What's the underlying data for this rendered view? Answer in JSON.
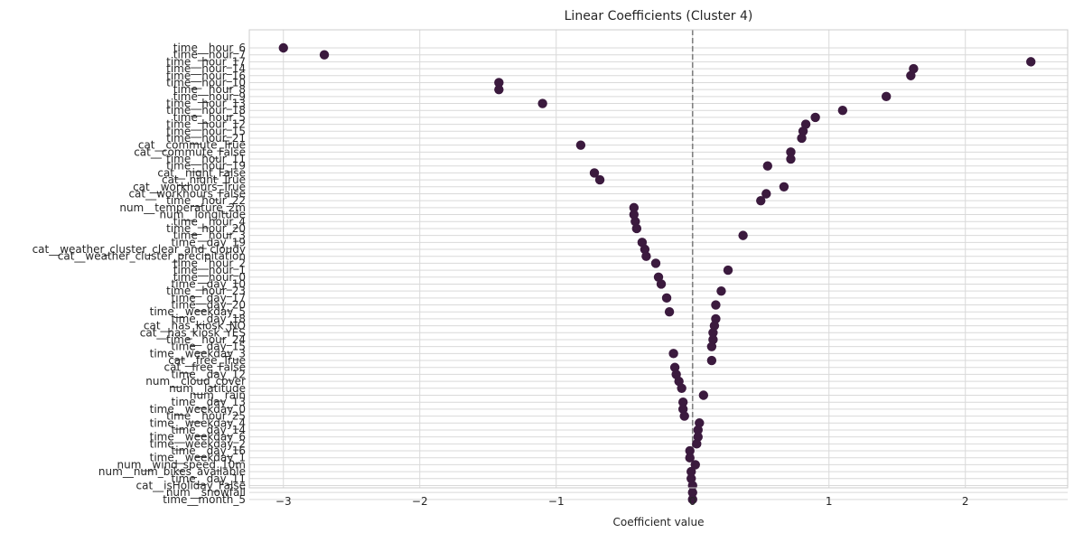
{
  "chart_data": {
    "type": "scatter",
    "title": "Linear Coefficients (Cluster 4)",
    "xlabel": "Coefficient value",
    "ylabel": "",
    "xlim": [
      -3.25,
      2.75
    ],
    "xticks": [
      -3,
      -2,
      -1,
      0,
      1,
      2
    ],
    "xtick_labels": [
      "−3",
      "−2",
      "−1",
      "0",
      "1",
      "2"
    ],
    "grid": true,
    "zero_line": {
      "x": 0,
      "style": "dashed",
      "color": "#808080"
    },
    "marker_color": "#3b1a3e",
    "labels": [
      "time__hour_6",
      "time__hour_7",
      "time__hour_17",
      "time__hour_14",
      "time__hour_16",
      "time__hour_10",
      "time__hour_8",
      "time__hour_9",
      "time__hour_13",
      "time__hour_18",
      "time__hour_5",
      "time__hour_12",
      "time__hour_15",
      "time__hour_21",
      "cat__commute_True",
      "cat__commute_False",
      "time__hour_11",
      "time__hour_19",
      "cat__night_False",
      "cat__night_True",
      "cat__workhours_True",
      "cat__workhours_False",
      "time__hour_22",
      "num__temperature_2m",
      "num__longitude",
      "time__hour_4",
      "time__hour_20",
      "time__hour_3",
      "time__day_19",
      "cat__weather_cluster_clear_and_cloudy",
      "cat__weather_cluster_precipitation",
      "time__hour_2",
      "time__hour_1",
      "time__hour_0",
      "time__day_10",
      "time__hour_23",
      "time__day_17",
      "time__day_20",
      "time__weekday_5",
      "time__day_18",
      "cat__has_kiosk_NO",
      "cat__has_kiosk_YES",
      "time__hour_24",
      "time__day_15",
      "time__weekday_3",
      "cat__free_True",
      "cat__free_False",
      "time__day_12",
      "num__cloud_cover",
      "num__latitude",
      "num__rain",
      "time__day_13",
      "time__weekday_0",
      "time__hour_25",
      "time__weekday_4",
      "time__day_14",
      "time__weekday_6",
      "time__weekday_2",
      "time__day_16",
      "time__weekday_1",
      "num__wind_speed_10m",
      "num__num_bikes_available",
      "time__day_11",
      "cat__isHoliday_False",
      "num__snowfall",
      "time__month_5"
    ],
    "values": [
      -3.0,
      -2.7,
      2.48,
      1.62,
      1.6,
      -1.42,
      -1.42,
      1.42,
      -1.1,
      1.1,
      0.9,
      0.83,
      0.81,
      0.8,
      -0.82,
      0.72,
      0.72,
      0.55,
      -0.72,
      -0.68,
      0.67,
      0.54,
      0.5,
      -0.43,
      -0.43,
      -0.42,
      -0.41,
      0.37,
      -0.37,
      -0.35,
      -0.34,
      -0.27,
      0.26,
      -0.25,
      -0.23,
      0.21,
      -0.19,
      0.17,
      -0.17,
      0.17,
      0.16,
      0.15,
      0.15,
      0.14,
      -0.14,
      0.14,
      -0.13,
      -0.12,
      -0.1,
      -0.08,
      0.08,
      -0.07,
      -0.07,
      -0.06,
      0.05,
      0.04,
      0.04,
      0.03,
      -0.02,
      -0.02,
      0.02,
      -0.01,
      -0.01,
      0.0,
      0.0,
      0.0
    ]
  }
}
